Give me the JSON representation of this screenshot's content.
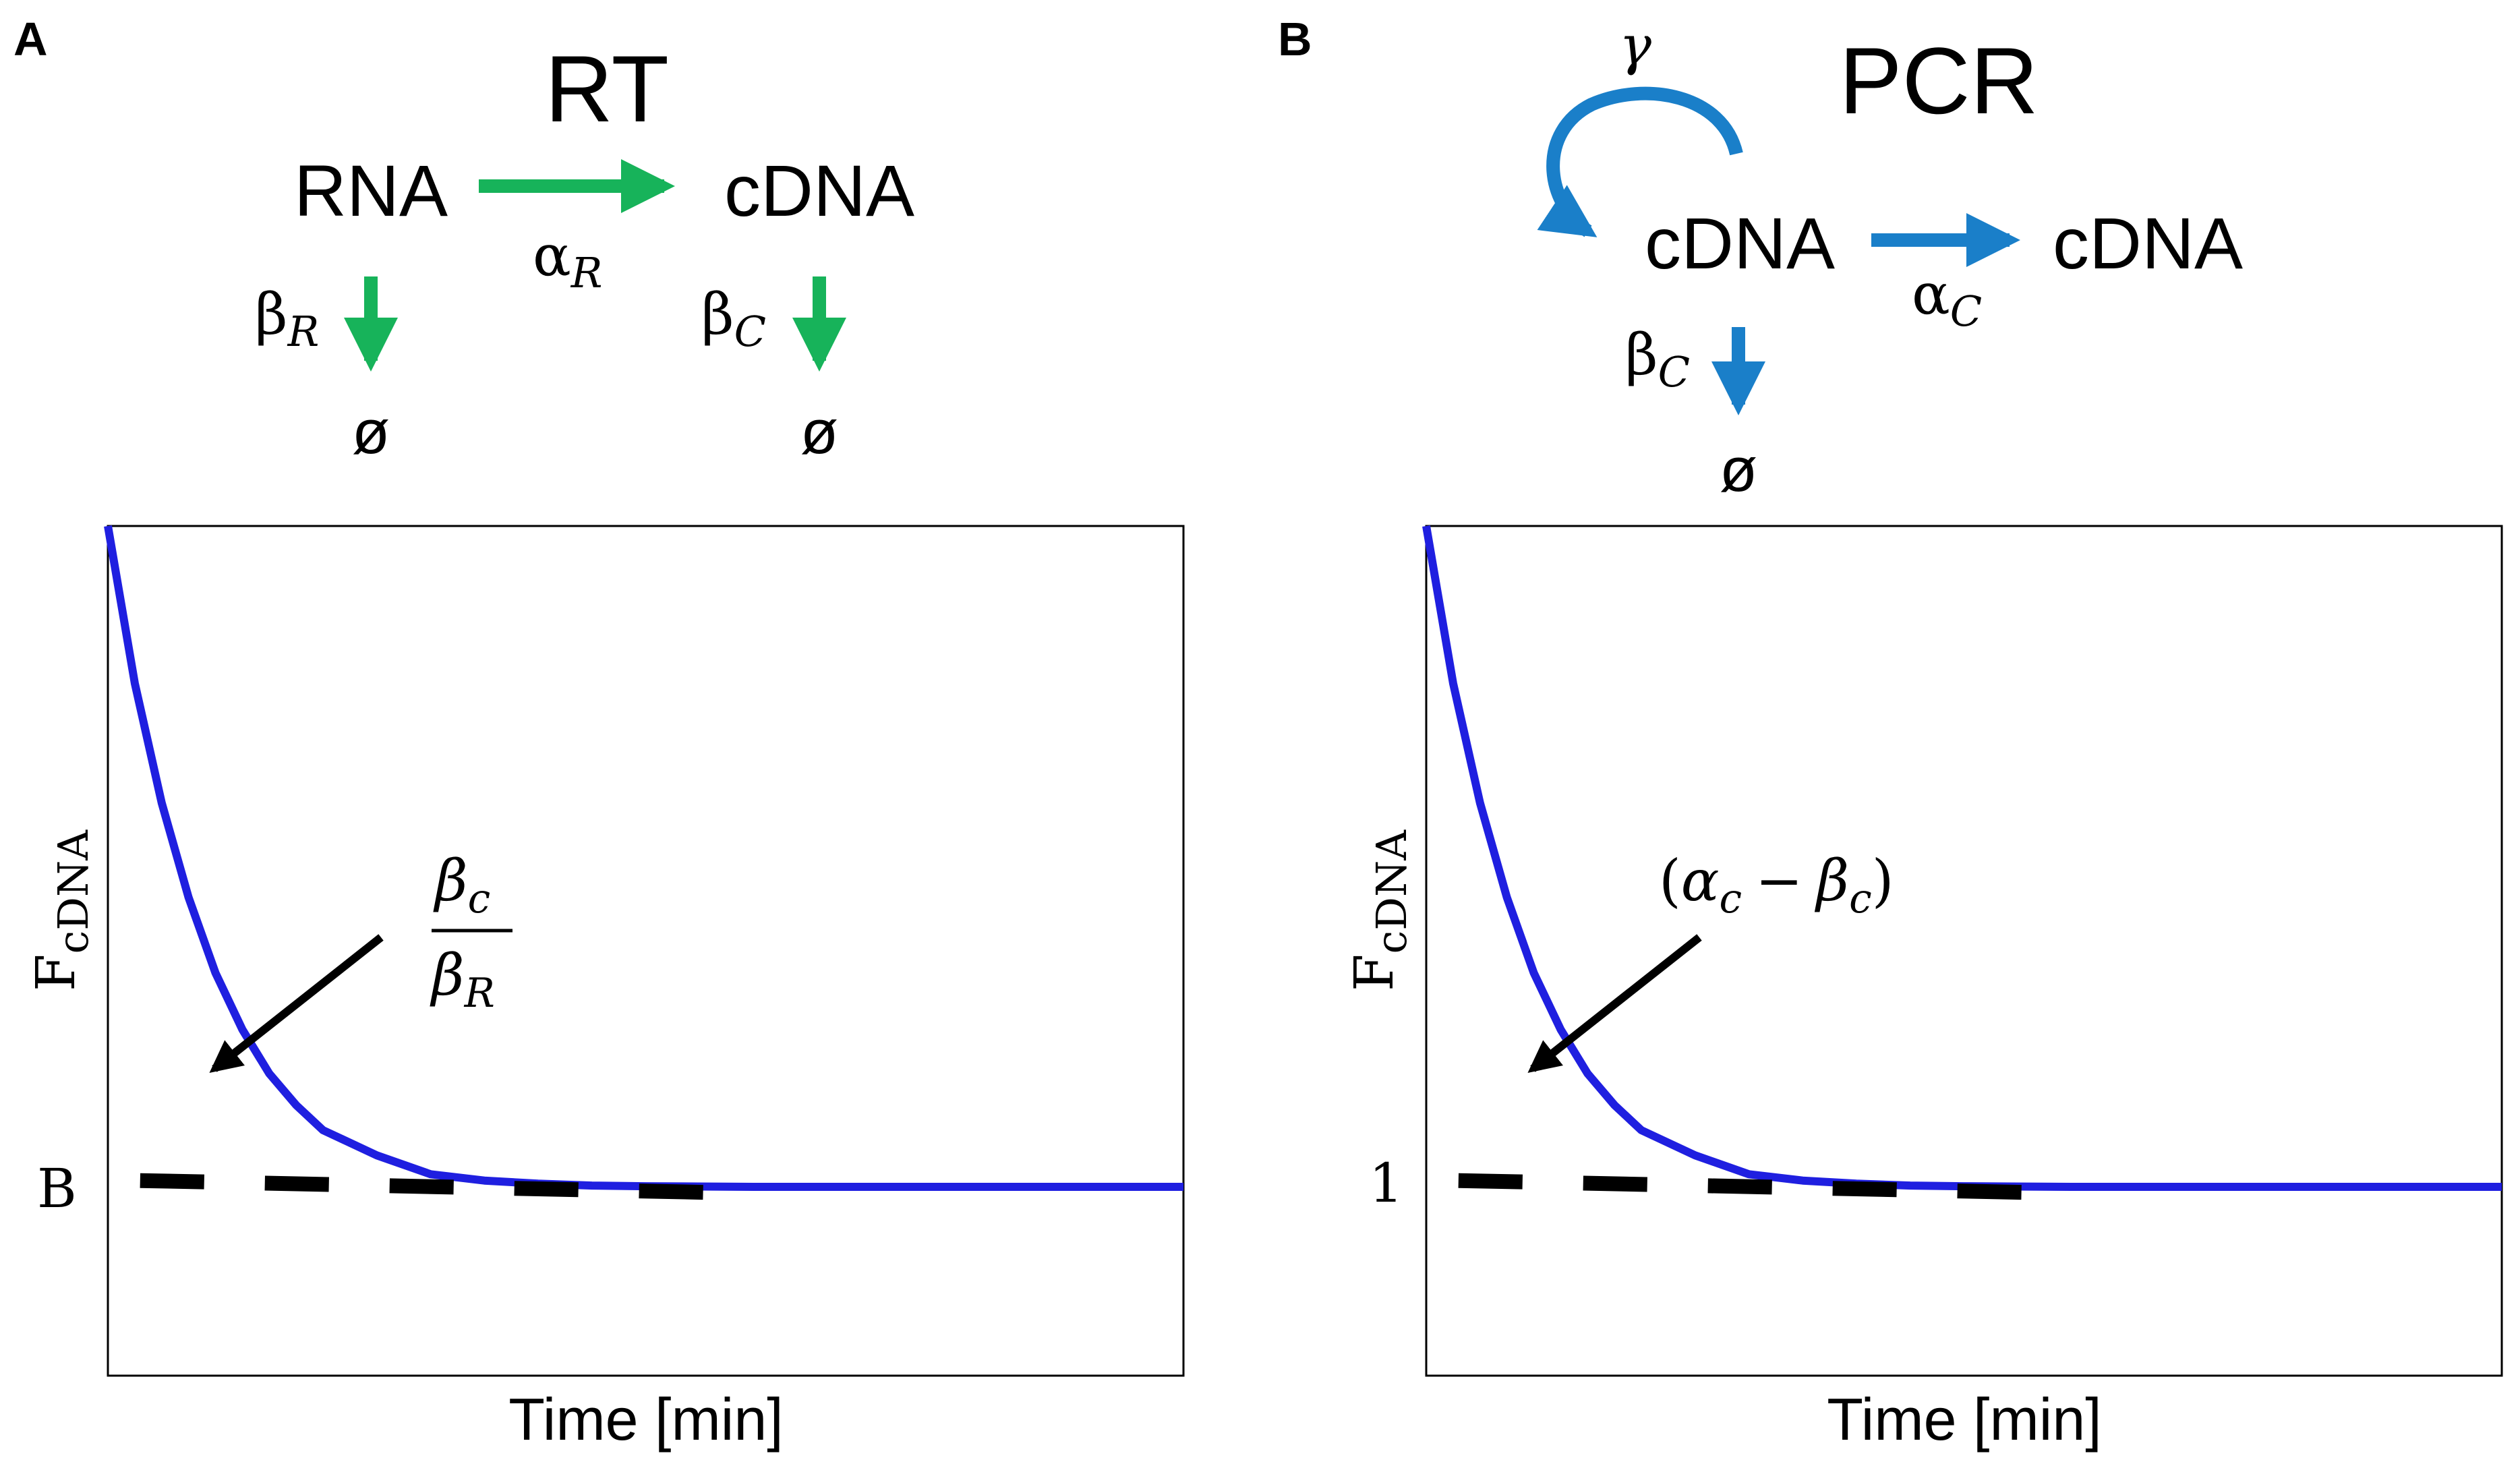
{
  "colors": {
    "green": "#17b35a",
    "blue_scheme": "#1a7fc9",
    "curve": "#1f1fe0",
    "dashed": "#000000",
    "text": "#000000"
  },
  "panel_a": {
    "letter": "A",
    "title": "RT",
    "species_left": "RNA",
    "species_right": "cDNA",
    "rate_forward": "αR",
    "rate_forward_base": "α",
    "rate_forward_sub": "R",
    "decay_left_base": "β",
    "decay_left_sub": "R",
    "decay_right_base": "β",
    "decay_right_sub": "C",
    "sink_left": "ø",
    "sink_right": "ø",
    "annotation_num_base": "β",
    "annotation_num_sub": "c",
    "annotation_den_base": "β",
    "annotation_den_sub": "R"
  },
  "panel_b": {
    "letter": "B",
    "title": "PCR",
    "loop_rate": "γ",
    "species_left": "cDNA",
    "species_right": "cDNA",
    "rate_forward_base": "α",
    "rate_forward_sub": "C",
    "decay_base": "β",
    "decay_sub": "C",
    "sink": "ø",
    "annotation_open": "(",
    "annotation_a_base": "α",
    "annotation_a_sub": "c",
    "annotation_minus": "−",
    "annotation_b_base": "β",
    "annotation_b_sub": "c",
    "annotation_close": ")"
  },
  "chart_data": [
    {
      "type": "line",
      "panel": "A",
      "xlabel": "Time [min]",
      "ylabel_base": "F",
      "ylabel_sub": "cDNA",
      "y_tick_label": "B",
      "xlim": [
        0,
        10
      ],
      "ylim": [
        0,
        1.35
      ],
      "series": [
        {
          "name": "F_cDNA",
          "style": "solid",
          "x": [
            0,
            0.25,
            0.5,
            0.75,
            1,
            1.25,
            1.5,
            1.75,
            2,
            2.5,
            3,
            3.5,
            4,
            4.5,
            5,
            6,
            7,
            8,
            9,
            10
          ],
          "y": [
            1.35,
            1.1,
            0.91,
            0.76,
            0.64,
            0.55,
            0.48,
            0.43,
            0.39,
            0.35,
            0.32,
            0.31,
            0.305,
            0.302,
            0.301,
            0.3,
            0.3,
            0.3,
            0.3,
            0.3
          ]
        },
        {
          "name": "baseline B",
          "style": "dashed",
          "x": [
            0.3,
            5.9
          ],
          "y": [
            0.31,
            0.29
          ]
        }
      ]
    },
    {
      "type": "line",
      "panel": "B",
      "xlabel": "Time [min]",
      "ylabel_base": "F",
      "ylabel_sub": "cDNA",
      "y_tick_label": "1",
      "xlim": [
        0,
        10
      ],
      "ylim": [
        0,
        1.35
      ],
      "series": [
        {
          "name": "F_cDNA",
          "style": "solid",
          "x": [
            0,
            0.25,
            0.5,
            0.75,
            1,
            1.25,
            1.5,
            1.75,
            2,
            2.5,
            3,
            3.5,
            4,
            4.5,
            5,
            6,
            7,
            8,
            9,
            10
          ],
          "y": [
            1.35,
            1.1,
            0.91,
            0.76,
            0.64,
            0.55,
            0.48,
            0.43,
            0.39,
            0.35,
            0.32,
            0.31,
            0.305,
            0.302,
            0.301,
            0.3,
            0.3,
            0.3,
            0.3,
            0.3
          ]
        },
        {
          "name": "baseline 1",
          "style": "dashed",
          "x": [
            0.3,
            5.9
          ],
          "y": [
            0.31,
            0.29
          ]
        }
      ]
    }
  ]
}
